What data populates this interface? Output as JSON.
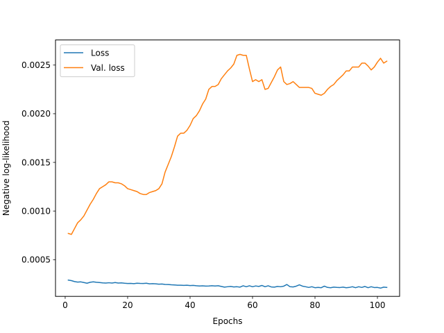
{
  "chart_data": {
    "type": "line",
    "title": "",
    "xlabel": "Epochs",
    "ylabel": "Negative log-likelihood",
    "xlim": [
      -3.1,
      107.1
    ],
    "ylim": [
      0.000123,
      0.002758
    ],
    "x_ticks": [
      0,
      20,
      40,
      60,
      80,
      100
    ],
    "x_tick_labels": [
      "0",
      "20",
      "40",
      "60",
      "80",
      "100"
    ],
    "y_ticks": [
      0.0005,
      0.001,
      0.0015,
      0.002,
      0.0025
    ],
    "y_tick_labels": [
      "0.0005",
      "0.0010",
      "0.0015",
      "0.0020",
      "0.0025"
    ],
    "grid": false,
    "legend_position": "upper-left",
    "series": [
      {
        "name": "Loss",
        "color": "#1f77b4",
        "x": [
          1,
          2,
          3,
          4,
          5,
          6,
          7,
          8,
          9,
          10,
          11,
          12,
          13,
          14,
          15,
          16,
          17,
          18,
          19,
          20,
          21,
          22,
          23,
          24,
          25,
          26,
          27,
          28,
          29,
          30,
          31,
          32,
          33,
          34,
          35,
          36,
          37,
          38,
          39,
          40,
          41,
          42,
          43,
          44,
          45,
          46,
          47,
          48,
          49,
          50,
          51,
          52,
          53,
          54,
          55,
          56,
          57,
          58,
          59,
          60,
          61,
          62,
          63,
          64,
          65,
          66,
          67,
          68,
          69,
          70,
          71,
          72,
          73,
          74,
          75,
          76,
          77,
          78,
          79,
          80,
          81,
          82,
          83,
          84,
          85,
          86,
          87,
          88,
          89,
          90,
          91,
          92,
          93,
          94,
          95,
          96,
          97,
          98,
          99,
          100,
          101,
          102,
          103
        ],
        "values": [
          0.00029,
          0.000285,
          0.000275,
          0.00027,
          0.000272,
          0.000265,
          0.000258,
          0.000268,
          0.000272,
          0.000268,
          0.000265,
          0.000262,
          0.00026,
          0.000263,
          0.00026,
          0.000265,
          0.00026,
          0.000262,
          0.000258,
          0.000255,
          0.000256,
          0.000254,
          0.000258,
          0.000256,
          0.000255,
          0.000258,
          0.000252,
          0.000254,
          0.000252,
          0.000248,
          0.00025,
          0.000246,
          0.000245,
          0.000242,
          0.00024,
          0.000238,
          0.000238,
          0.000236,
          0.000238,
          0.000234,
          0.000236,
          0.000232,
          0.00023,
          0.000231,
          0.000229,
          0.00023,
          0.000232,
          0.00023,
          0.000232,
          0.000225,
          0.000218,
          0.000222,
          0.000225,
          0.00022,
          0.000222,
          0.000218,
          0.000232,
          0.000222,
          0.000232,
          0.000222,
          0.00023,
          0.000225,
          0.000235,
          0.000222,
          0.000232,
          0.00022,
          0.000218,
          0.000225,
          0.000222,
          0.000228,
          0.000245,
          0.000222,
          0.00022,
          0.000228,
          0.000242,
          0.000228,
          0.000222,
          0.000215,
          0.000222,
          0.000212,
          0.000215,
          0.000212,
          0.000228,
          0.000215,
          0.000212,
          0.000218,
          0.000215,
          0.000214,
          0.000218,
          0.000212,
          0.000215,
          0.000222,
          0.000212,
          0.000222,
          0.000215,
          0.000225,
          0.000212,
          0.000222,
          0.000214,
          0.000215,
          0.000208,
          0.000218,
          0.000215
        ]
      },
      {
        "name": "Val. loss",
        "color": "#ff7f0e",
        "x": [
          1,
          2,
          3,
          4,
          5,
          6,
          7,
          8,
          9,
          10,
          11,
          12,
          13,
          14,
          15,
          16,
          17,
          18,
          19,
          20,
          21,
          22,
          23,
          24,
          25,
          26,
          27,
          28,
          29,
          30,
          31,
          32,
          33,
          34,
          35,
          36,
          37,
          38,
          39,
          40,
          41,
          42,
          43,
          44,
          45,
          46,
          47,
          48,
          49,
          50,
          51,
          52,
          53,
          54,
          55,
          56,
          57,
          58,
          59,
          60,
          61,
          62,
          63,
          64,
          65,
          66,
          67,
          68,
          69,
          70,
          71,
          72,
          73,
          74,
          75,
          76,
          77,
          78,
          79,
          80,
          81,
          82,
          83,
          84,
          85,
          86,
          87,
          88,
          89,
          90,
          91,
          92,
          93,
          94,
          95,
          96,
          97,
          98,
          99,
          100,
          101,
          102,
          103
        ],
        "values": [
          0.00077,
          0.00076,
          0.00082,
          0.00088,
          0.00091,
          0.00095,
          0.00101,
          0.00107,
          0.00112,
          0.00118,
          0.00123,
          0.00125,
          0.00127,
          0.0013,
          0.0013,
          0.00129,
          0.00129,
          0.00128,
          0.00126,
          0.00123,
          0.00122,
          0.00121,
          0.0012,
          0.00118,
          0.00117,
          0.00117,
          0.00119,
          0.0012,
          0.00121,
          0.00123,
          0.00128,
          0.0014,
          0.00148,
          0.00156,
          0.00166,
          0.00177,
          0.0018,
          0.0018,
          0.00183,
          0.00188,
          0.00195,
          0.00198,
          0.00203,
          0.0021,
          0.00215,
          0.00225,
          0.00228,
          0.00228,
          0.0023,
          0.00236,
          0.0024,
          0.00244,
          0.00247,
          0.00251,
          0.0026,
          0.00261,
          0.0026,
          0.0026,
          0.00246,
          0.00233,
          0.00235,
          0.00233,
          0.00235,
          0.00225,
          0.00226,
          0.00232,
          0.00238,
          0.00245,
          0.00248,
          0.00233,
          0.0023,
          0.00231,
          0.00233,
          0.0023,
          0.00227,
          0.00227,
          0.00227,
          0.00227,
          0.00226,
          0.00221,
          0.0022,
          0.00219,
          0.00221,
          0.00225,
          0.00228,
          0.0023,
          0.00234,
          0.00237,
          0.0024,
          0.00244,
          0.00244,
          0.00248,
          0.00248,
          0.00248,
          0.00252,
          0.00252,
          0.00249,
          0.00245,
          0.00248,
          0.00253,
          0.00257,
          0.00252,
          0.00254
        ]
      }
    ]
  }
}
